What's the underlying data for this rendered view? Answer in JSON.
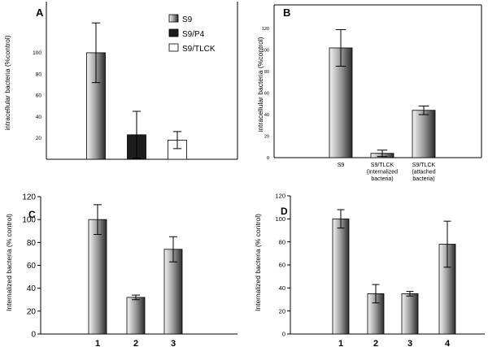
{
  "chart_data": [
    {
      "type": "bar",
      "panel": "A",
      "ylabel": "intracellular bacteria (%control)",
      "yticks": [
        20,
        40,
        60,
        80,
        100
      ],
      "ylim": [
        0,
        148
      ],
      "categories": [
        "S9",
        "S9/P4",
        "S9/TLCK"
      ],
      "values": [
        100,
        23,
        18
      ],
      "errors": [
        28,
        22,
        8
      ],
      "legend": [
        "S9",
        "S9/P4",
        "S9/TLCK"
      ],
      "legend_position": "top-right"
    },
    {
      "type": "bar",
      "panel": "B",
      "ylabel": "intracellular bacteria (%control)",
      "yticks": [
        0,
        20,
        40,
        60,
        80,
        100,
        120
      ],
      "ylim": [
        0,
        142
      ],
      "categories": [
        [
          "S9"
        ],
        [
          "S9/TLCK",
          "(internalized",
          "bacteria)"
        ],
        [
          "S9/TLCK",
          "(attached",
          "bacteria)"
        ]
      ],
      "values": [
        102,
        4,
        44
      ],
      "errors": [
        17,
        3,
        4
      ]
    },
    {
      "type": "bar",
      "panel": "C",
      "ylabel": "Internalized bacteria (% control)",
      "yticks": [
        0,
        20,
        40,
        60,
        80,
        100,
        120
      ],
      "ylim": [
        0,
        120
      ],
      "categories": [
        "1",
        "2",
        "3"
      ],
      "values": [
        100,
        32,
        74
      ],
      "errors": [
        13,
        2,
        11
      ]
    },
    {
      "type": "bar",
      "panel": "D",
      "ylabel": "Internalized bacteria (% control)",
      "yticks": [
        0,
        20,
        40,
        60,
        80,
        100,
        120
      ],
      "ylim": [
        0,
        120
      ],
      "categories": [
        "1",
        "2",
        "3",
        "4"
      ],
      "values": [
        100,
        35,
        35,
        78
      ],
      "errors": [
        8,
        8,
        2,
        20
      ]
    }
  ]
}
